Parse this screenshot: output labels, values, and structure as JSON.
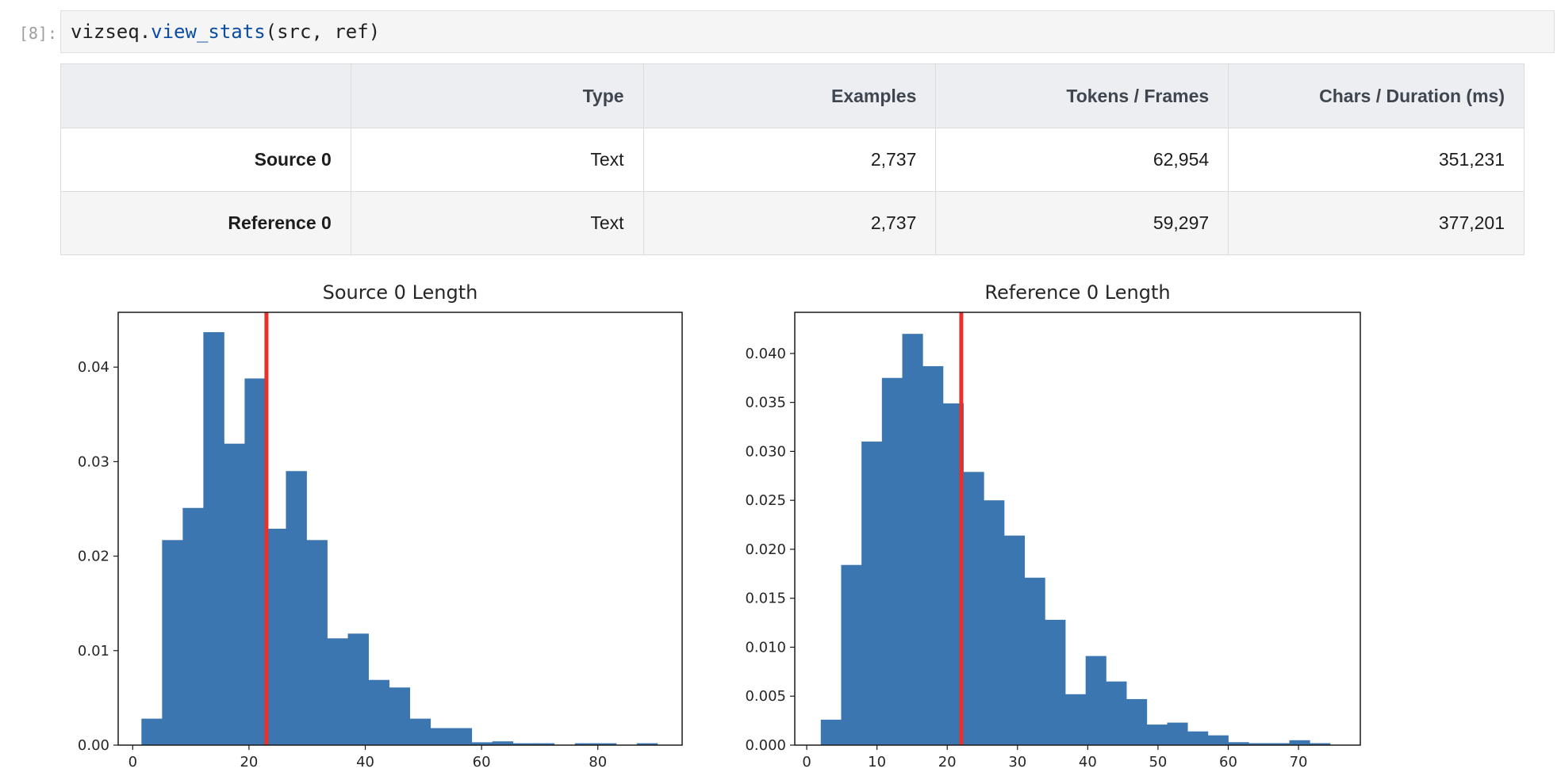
{
  "cell": {
    "prompt": "[8]:",
    "code_prefix": "vizseq.",
    "code_fn": "view_stats",
    "code_suffix": "(src, ref)"
  },
  "table": {
    "headers": [
      "",
      "Type",
      "Examples",
      "Tokens / Frames",
      "Chars / Duration (ms)"
    ],
    "rows": [
      {
        "name": "Source 0",
        "type": "Text",
        "examples": "2,737",
        "tokens": "62,954",
        "chars": "351,231"
      },
      {
        "name": "Reference 0",
        "type": "Text",
        "examples": "2,737",
        "tokens": "59,297",
        "chars": "377,201"
      }
    ]
  },
  "chart_data": [
    {
      "type": "bar",
      "title": "Source 0 Length",
      "xlabel": "",
      "ylabel": "",
      "bar_color": "#3b76b0",
      "mean_line_color": "#e8312d",
      "mean": 23,
      "xlim": [
        -2.5,
        94.5
      ],
      "ylim": [
        0,
        0.0458
      ],
      "xticks": [
        0,
        20,
        40,
        60,
        80
      ],
      "yticks": [
        0.0,
        0.01,
        0.02,
        0.03,
        0.04
      ],
      "ytick_labels": [
        "0.00",
        "0.01",
        "0.02",
        "0.03",
        "0.04"
      ],
      "bin_start": 1.5,
      "bin_width": 3.55,
      "values": [
        0.0028,
        0.0217,
        0.0251,
        0.0437,
        0.0319,
        0.0388,
        0.0229,
        0.029,
        0.0217,
        0.0113,
        0.0118,
        0.0069,
        0.0061,
        0.0028,
        0.0018,
        0.0018,
        0.0003,
        0.0004,
        0.0002,
        0.0002,
        0.0,
        0.0002,
        0.0002,
        0.0,
        0.0002
      ]
    },
    {
      "type": "bar",
      "title": "Reference 0 Length",
      "xlabel": "",
      "ylabel": "",
      "bar_color": "#3b76b0",
      "mean_line_color": "#e8312d",
      "mean": 22,
      "xlim": [
        -1.7,
        78.8
      ],
      "ylim": [
        0,
        0.0442
      ],
      "xticks": [
        0,
        10,
        20,
        30,
        40,
        50,
        60,
        70
      ],
      "yticks": [
        0.0,
        0.005,
        0.01,
        0.015,
        0.02,
        0.025,
        0.03,
        0.035,
        0.04
      ],
      "ytick_labels": [
        "0.000",
        "0.005",
        "0.010",
        "0.015",
        "0.020",
        "0.025",
        "0.030",
        "0.035",
        "0.040"
      ],
      "bin_start": 2.0,
      "bin_width": 2.9,
      "values": [
        0.0026,
        0.0184,
        0.031,
        0.0375,
        0.042,
        0.0387,
        0.0349,
        0.0279,
        0.025,
        0.0214,
        0.0171,
        0.0128,
        0.0052,
        0.0091,
        0.0065,
        0.0047,
        0.0021,
        0.0023,
        0.0014,
        0.001,
        0.0003,
        0.0002,
        0.0002,
        0.0005,
        0.0002
      ]
    }
  ]
}
